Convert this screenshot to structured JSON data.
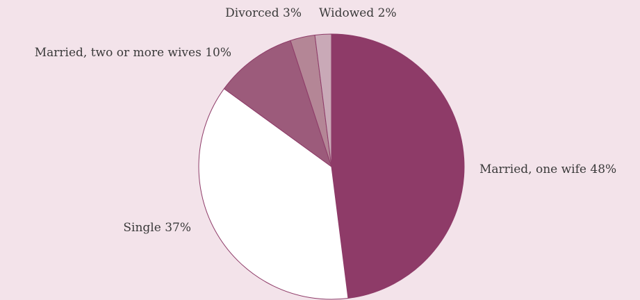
{
  "chart_data": {
    "type": "pie",
    "title": "",
    "slices": [
      {
        "label": "Married, one wife",
        "percent_text": "48%",
        "value": 48,
        "color": "#8e3b68"
      },
      {
        "label": "Single",
        "percent_text": "37%",
        "value": 37,
        "color": "#ffffff"
      },
      {
        "label": "Married, two or more wives",
        "percent_text": "10%",
        "value": 10,
        "color": "#9c5b7b"
      },
      {
        "label": "Divorced",
        "percent_text": "3%",
        "value": 3,
        "color": "#b48696"
      },
      {
        "label": "Widowed",
        "percent_text": "2%",
        "value": 2,
        "color": "#c9a9b7"
      }
    ],
    "start_angle": "12 o'clock",
    "direction": "clockwise",
    "legend": "none",
    "stroke_color": "#8e3b68",
    "background_color": "#f3e3ea"
  }
}
